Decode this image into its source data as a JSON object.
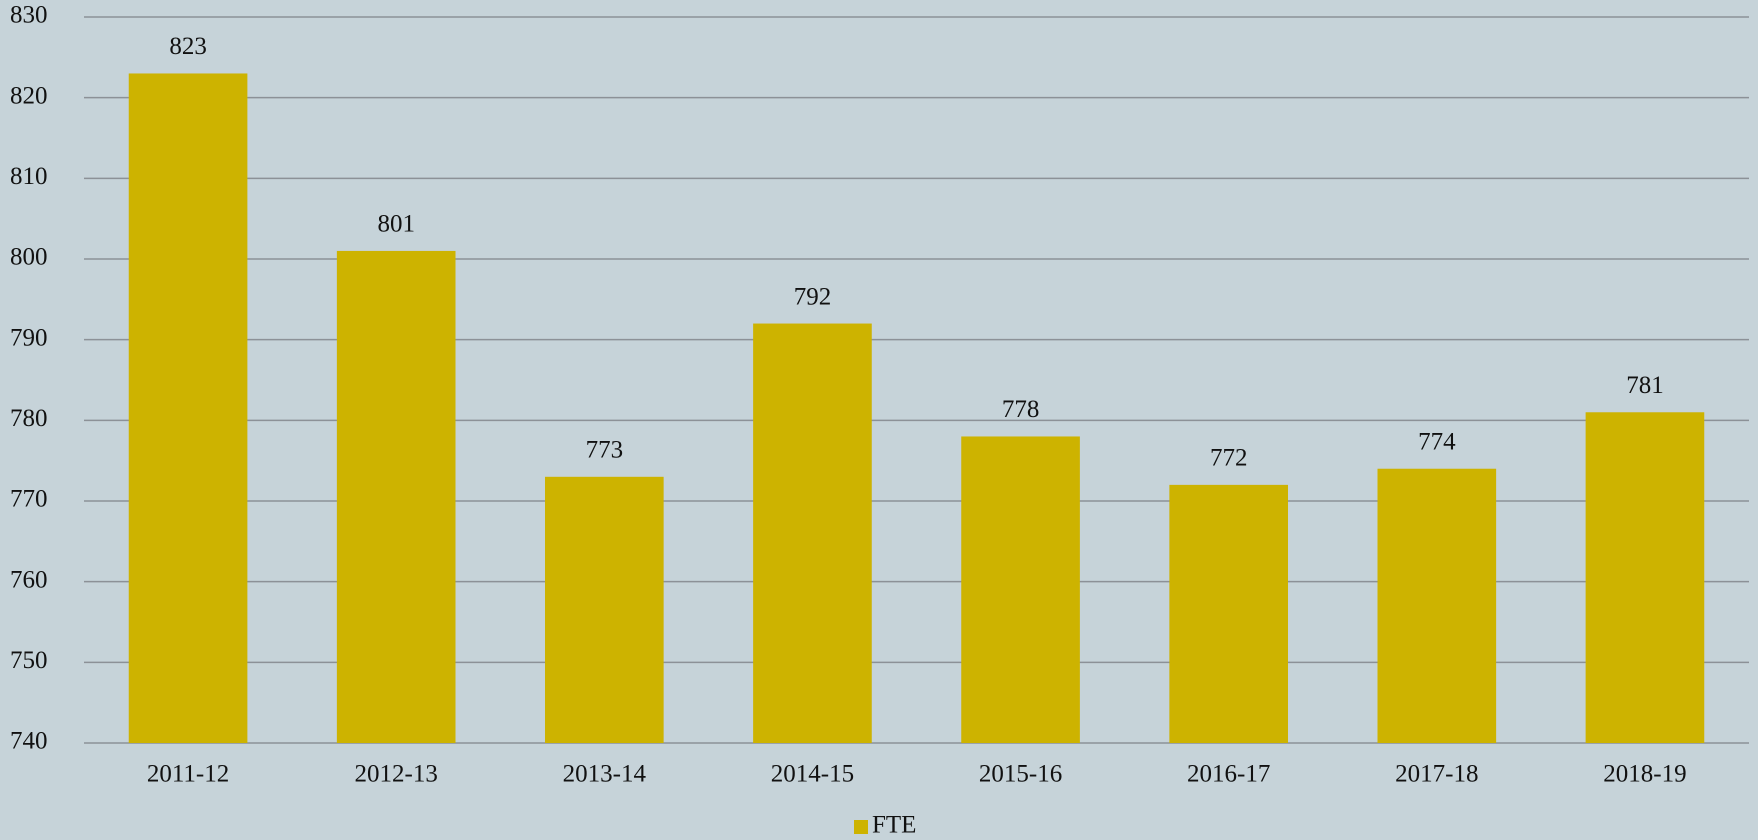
{
  "chart_data": {
    "type": "bar",
    "categories": [
      "2011-12",
      "2012-13",
      "2013-14",
      "2014-15",
      "2015-16",
      "2016-17",
      "2017-18",
      "2018-19"
    ],
    "series": [
      {
        "name": "FTE",
        "color": "#cdb300",
        "values": [
          823,
          801,
          773,
          792,
          778,
          772,
          774,
          781
        ]
      }
    ],
    "ylim": [
      740,
      830
    ],
    "yticks": [
      740,
      750,
      760,
      770,
      780,
      790,
      800,
      810,
      820,
      830
    ],
    "grid": true,
    "legend": "bottom"
  }
}
